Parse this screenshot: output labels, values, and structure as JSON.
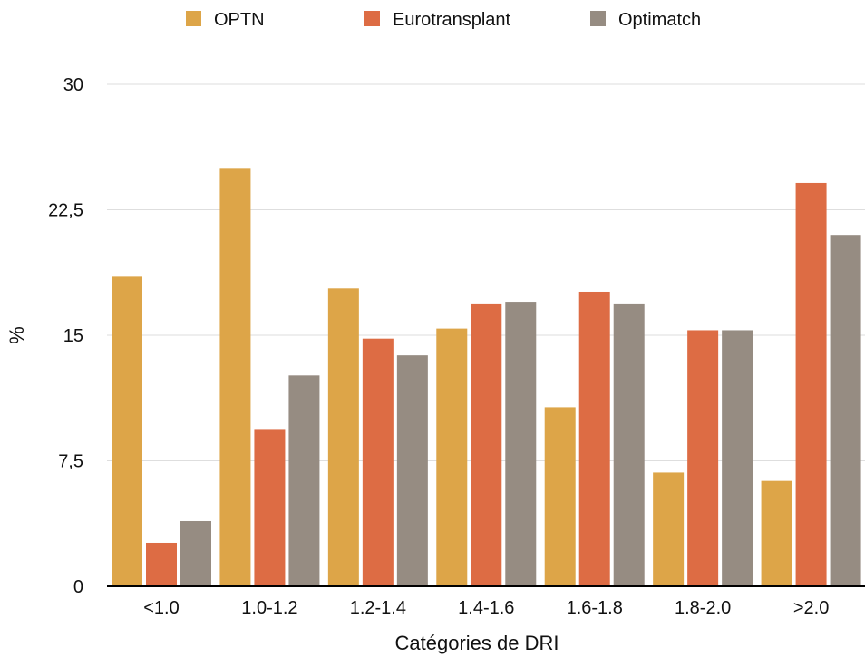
{
  "chart_data": {
    "type": "bar",
    "xlabel": "Catégories de DRI",
    "ylabel": "%",
    "ylim": [
      0,
      30
    ],
    "yticks": [
      0,
      7.5,
      15,
      22.5,
      30
    ],
    "ytick_labels": [
      "0",
      "7,5",
      "15",
      "22,5",
      "30"
    ],
    "categories": [
      "<1.0",
      "1.0-1.2",
      "1.2-1.4",
      "1.4-1.6",
      "1.6-1.8",
      "1.8-2.0",
      ">2.0"
    ],
    "legend_position": "top",
    "grid": true,
    "series": [
      {
        "name": "OPTN",
        "color": "#DDA548",
        "values": [
          18.5,
          25.0,
          17.8,
          15.4,
          10.7,
          6.8,
          6.3
        ]
      },
      {
        "name": "Eurotransplant",
        "color": "#DD6C44",
        "values": [
          2.6,
          9.4,
          14.8,
          16.9,
          17.6,
          15.3,
          24.1
        ]
      },
      {
        "name": "Optimatch",
        "color": "#968C82",
        "values": [
          3.9,
          12.6,
          13.8,
          17.0,
          16.9,
          15.3,
          21.0
        ]
      }
    ]
  }
}
